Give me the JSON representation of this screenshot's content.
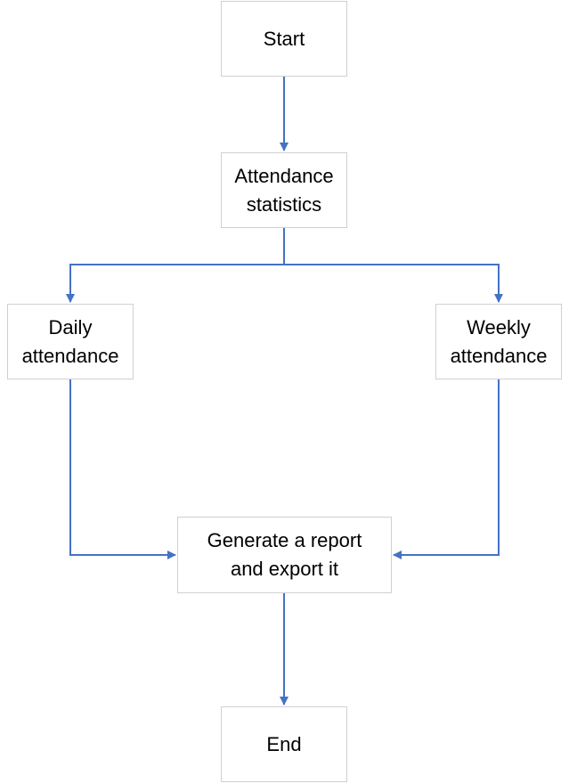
{
  "diagram": {
    "line_color": "#4472c4",
    "node_border_color": "#d0d0d0",
    "nodes": {
      "start": "Start",
      "stats": "Attendance\nstatistics",
      "daily": "Daily\nattendance",
      "weekly": "Weekly\nattendance",
      "report": "Generate a report\nand export it",
      "end": "End"
    },
    "edges": [
      {
        "from": "start",
        "to": "stats"
      },
      {
        "from": "stats",
        "to": "daily"
      },
      {
        "from": "stats",
        "to": "weekly"
      },
      {
        "from": "daily",
        "to": "report"
      },
      {
        "from": "weekly",
        "to": "report"
      },
      {
        "from": "report",
        "to": "end"
      }
    ]
  }
}
